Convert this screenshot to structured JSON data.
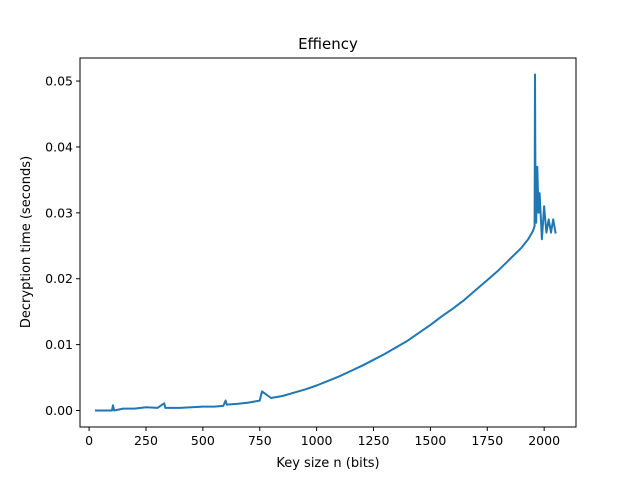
{
  "chart_data": {
    "type": "line",
    "title": "Effiency",
    "xlabel": "Key size n (bits)",
    "ylabel": "Decryption time (seconds)",
    "xlim": [
      -40,
      2140
    ],
    "ylim": [
      -0.0025,
      0.0535
    ],
    "xticks": [
      0,
      250,
      500,
      750,
      1000,
      1250,
      1500,
      1750,
      2000
    ],
    "xtick_labels": [
      "0",
      "250",
      "500",
      "750",
      "1000",
      "1250",
      "1500",
      "1750",
      "2000"
    ],
    "yticks": [
      0.0,
      0.01,
      0.02,
      0.03,
      0.04,
      0.05
    ],
    "ytick_labels": [
      "0.00",
      "0.01",
      "0.02",
      "0.03",
      "0.04",
      "0.05"
    ],
    "grid": false,
    "color": "#1f77b4",
    "series": [
      {
        "x": [
          30,
          100,
          105,
          110,
          150,
          200,
          250,
          300,
          330,
          335,
          340,
          400,
          450,
          500,
          540,
          550,
          590,
          600,
          605,
          650,
          700,
          750,
          760,
          800,
          850,
          900,
          950,
          1000,
          1050,
          1100,
          1150,
          1200,
          1250,
          1300,
          1350,
          1400,
          1450,
          1500,
          1550,
          1600,
          1650,
          1700,
          1750,
          1800,
          1850,
          1900,
          1930,
          1950,
          1958,
          1960,
          1962,
          1965,
          1970,
          1975,
          1980,
          1990,
          2000,
          2010,
          2020,
          2030,
          2040,
          2050
        ],
        "y": [
          0.0,
          0.0,
          0.0008,
          0.0,
          0.0003,
          0.0003,
          0.0005,
          0.0004,
          0.0011,
          0.0004,
          0.0004,
          0.0004,
          0.0005,
          0.0006,
          0.0006,
          0.0006,
          0.0007,
          0.0015,
          0.0009,
          0.001,
          0.0012,
          0.0015,
          0.0029,
          0.0019,
          0.0022,
          0.0027,
          0.0032,
          0.0038,
          0.0045,
          0.0052,
          0.006,
          0.0068,
          0.0077,
          0.0086,
          0.0096,
          0.0106,
          0.0118,
          0.013,
          0.0143,
          0.0155,
          0.0168,
          0.0183,
          0.0198,
          0.0213,
          0.023,
          0.0247,
          0.026,
          0.0272,
          0.028,
          0.051,
          0.032,
          0.0285,
          0.037,
          0.03,
          0.033,
          0.026,
          0.031,
          0.027,
          0.029,
          0.027,
          0.029,
          0.027
        ]
      }
    ]
  }
}
